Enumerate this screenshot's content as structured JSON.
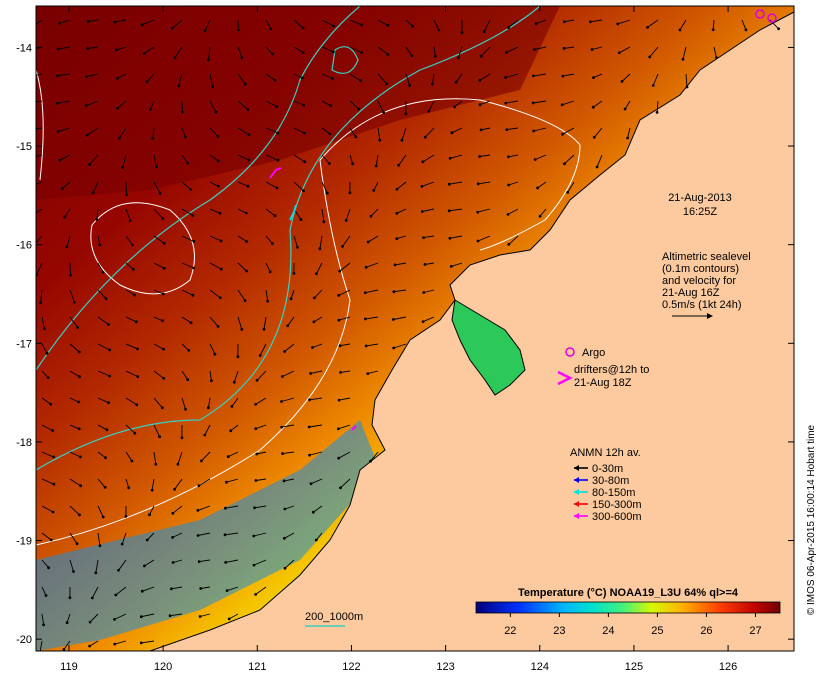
{
  "map": {
    "x_axis": {
      "min": 118.65,
      "max": 126.7,
      "ticks": [
        119,
        120,
        121,
        122,
        123,
        124,
        125,
        126
      ],
      "tick_labels": [
        "119",
        "120",
        "121",
        "122",
        "123",
        "124",
        "125",
        "126"
      ]
    },
    "y_axis": {
      "min": -20.12,
      "max": -13.58,
      "ticks": [
        -14,
        -15,
        -16,
        -17,
        -18,
        -19,
        -20
      ],
      "tick_labels": [
        "-14",
        "-15",
        "-16",
        "-17",
        "-18",
        "-19",
        "-20"
      ]
    },
    "land_color": "#fcca9e",
    "contour_color": "#ffffff",
    "isobath_color": "#3ad0c0"
  },
  "timestamp": {
    "line1": "21-Aug-2013",
    "line2": "16:25Z"
  },
  "altimetry_note": {
    "lines": [
      "Altimetric sealevel",
      "(0.1m contours)",
      "and velocity for",
      "21-Aug 16Z",
      "0.5m/s (1kt 24h)"
    ]
  },
  "argo_legend": {
    "label": "Argo",
    "color": "#e000e0"
  },
  "drifter_legend": {
    "lines": [
      "drifters@12h to",
      "21-Aug 18Z"
    ],
    "color": "#ff00ff"
  },
  "anmn_legend": {
    "title": "ANMN 12h av.",
    "items": [
      {
        "label": "0-30m",
        "color": "#000000"
      },
      {
        "label": "30-80m",
        "color": "#0000ff"
      },
      {
        "label": "80-150m",
        "color": "#00e0e0"
      },
      {
        "label": "150-300m",
        "color": "#ff0000"
      },
      {
        "label": "300-600m",
        "color": "#ff00ff"
      }
    ]
  },
  "isobath_legend": {
    "label": "200_1000m"
  },
  "colorbar": {
    "title": "Temperature (°C) NOAA19_L3U 64% ql>=4",
    "min": 21.3,
    "max": 27.5,
    "ticks": [
      22,
      23,
      24,
      25,
      26,
      27
    ],
    "tick_labels": [
      "22",
      "23",
      "24",
      "25",
      "26",
      "27"
    ]
  },
  "credit": "© IMOS 06-Apr-2015 16:00:14 Hobart time"
}
